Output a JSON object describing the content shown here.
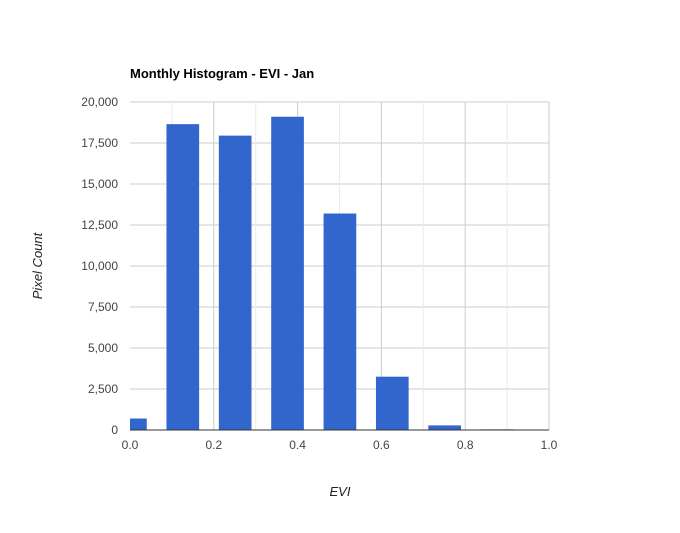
{
  "chart_data": {
    "type": "bar",
    "title": "Monthly Histogram - EVI - Jan",
    "xlabel": "EVI",
    "ylabel": "Pixel Count",
    "xlim": [
      0.0,
      1.0
    ],
    "ylim": [
      0,
      20000
    ],
    "x_ticks": [
      "0.0",
      "0.2",
      "0.4",
      "0.6",
      "0.8",
      "1.0"
    ],
    "y_ticks": [
      "0",
      "2,500",
      "5,000",
      "7,500",
      "10,000",
      "12,500",
      "15,000",
      "17,500",
      "20,000"
    ],
    "bar_color": "#3366cc",
    "grid": true,
    "legend": "none",
    "bars": [
      {
        "x_start": 0.0,
        "x_end": 0.04,
        "value": 700
      },
      {
        "x_start": 0.087,
        "x_end": 0.165,
        "value": 18650
      },
      {
        "x_start": 0.212,
        "x_end": 0.29,
        "value": 17950
      },
      {
        "x_start": 0.337,
        "x_end": 0.415,
        "value": 19100
      },
      {
        "x_start": 0.462,
        "x_end": 0.54,
        "value": 13200
      },
      {
        "x_start": 0.587,
        "x_end": 0.665,
        "value": 3250
      },
      {
        "x_start": 0.712,
        "x_end": 0.79,
        "value": 280
      },
      {
        "x_start": 0.837,
        "x_end": 0.915,
        "value": 40
      },
      {
        "x_start": 0.962,
        "x_end": 1.0,
        "value": 20
      }
    ]
  }
}
